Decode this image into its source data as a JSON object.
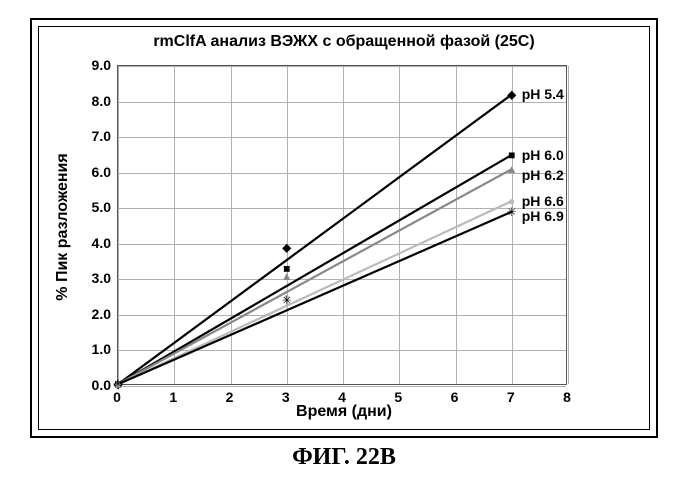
{
  "caption": "ФИГ. 22В",
  "chart": {
    "type": "line",
    "title": "rmClfA анализ ВЭЖХ с обращенной фазой (25C)",
    "title_fontsize": 16,
    "xlabel": "Время (дни)",
    "ylabel": "% Пик разложения",
    "label_fontsize": 16,
    "tick_fontsize": 14,
    "xlim": [
      0,
      8
    ],
    "ylim": [
      0,
      9
    ],
    "xtick_step": 1,
    "ytick_step": 1,
    "grid_color": "#b0b0b0",
    "background_color": "#ffffff",
    "plot_border_color": "#555555",
    "outer_border_color": "#000000",
    "line_width": 2.2,
    "marker_size": 6,
    "series": [
      {
        "label": "pH 5.4",
        "color": "#000000",
        "marker_char": "◆",
        "marker_color": "#000000",
        "x": [
          0,
          3,
          7
        ],
        "y": [
          0.05,
          3.9,
          8.2
        ]
      },
      {
        "label": "pH 6.0",
        "color": "#000000",
        "marker_char": "■",
        "marker_color": "#000000",
        "x": [
          0,
          3,
          7
        ],
        "y": [
          0.05,
          3.3,
          6.5
        ]
      },
      {
        "label": "pH 6.2",
        "color": "#888888",
        "marker_char": "▲",
        "marker_color": "#888888",
        "x": [
          0,
          3,
          7
        ],
        "y": [
          0.05,
          3.1,
          6.1
        ]
      },
      {
        "label": "pH 6.6",
        "color": "#bbbbbb",
        "marker_char": "●",
        "marker_color": "#bbbbbb",
        "x": [
          0,
          3,
          7
        ],
        "y": [
          0.05,
          2.5,
          5.2
        ]
      },
      {
        "label": "pH 6.9",
        "color": "#000000",
        "marker_char": "✳",
        "marker_color": "#000000",
        "x": [
          0,
          3,
          7
        ],
        "y": [
          0.05,
          2.4,
          4.9
        ]
      }
    ],
    "series_label_offsets_y": [
      0,
      0,
      6,
      0,
      4
    ]
  }
}
